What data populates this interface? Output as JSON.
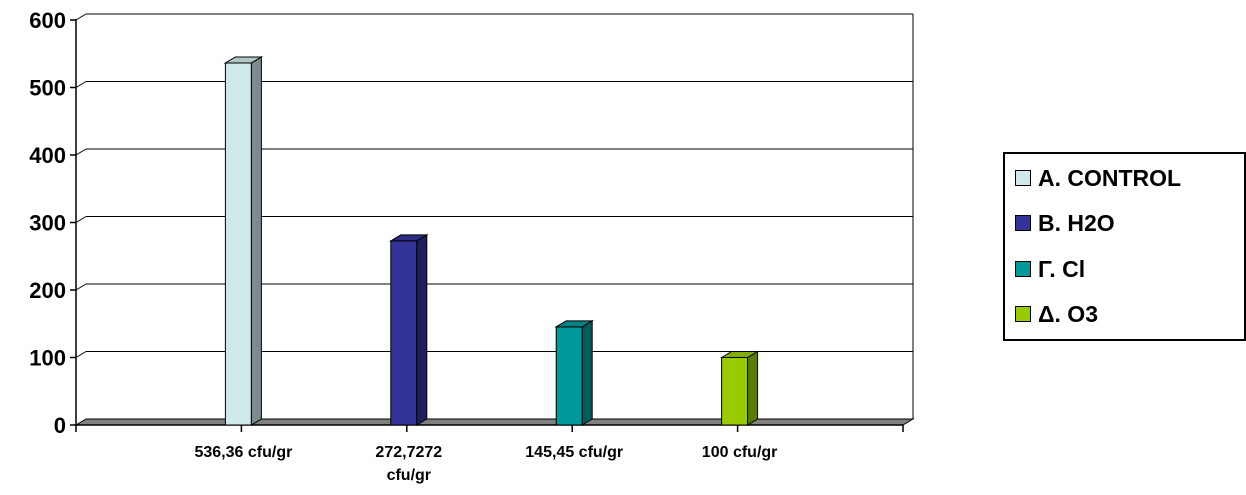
{
  "chart_data": {
    "type": "bar",
    "categories": [
      "536,36 cfu/gr",
      "272,7272\ncfu/gr",
      "145,45 cfu/gr",
      "100 cfu/gr"
    ],
    "series": [
      {
        "name": "A. CONTROL",
        "values": [
          536.36,
          null,
          null,
          null
        ],
        "color": "#cfe9ea"
      },
      {
        "name": "B. H2O",
        "values": [
          null,
          272.73,
          null,
          null
        ],
        "color": "#333399"
      },
      {
        "name": "Γ. Cl",
        "values": [
          null,
          null,
          145.45,
          null
        ],
        "color": "#009999"
      },
      {
        "name": "Δ. O3",
        "values": [
          null,
          null,
          null,
          100
        ],
        "color": "#99cc00"
      }
    ],
    "yticks": [
      "0",
      "100",
      "200",
      "300",
      "400",
      "500",
      "600"
    ],
    "ylim": [
      0,
      600
    ],
    "title": "",
    "xlabel": "",
    "ylabel": "",
    "grid": true,
    "legend_position": "right",
    "style": "3d-column"
  }
}
